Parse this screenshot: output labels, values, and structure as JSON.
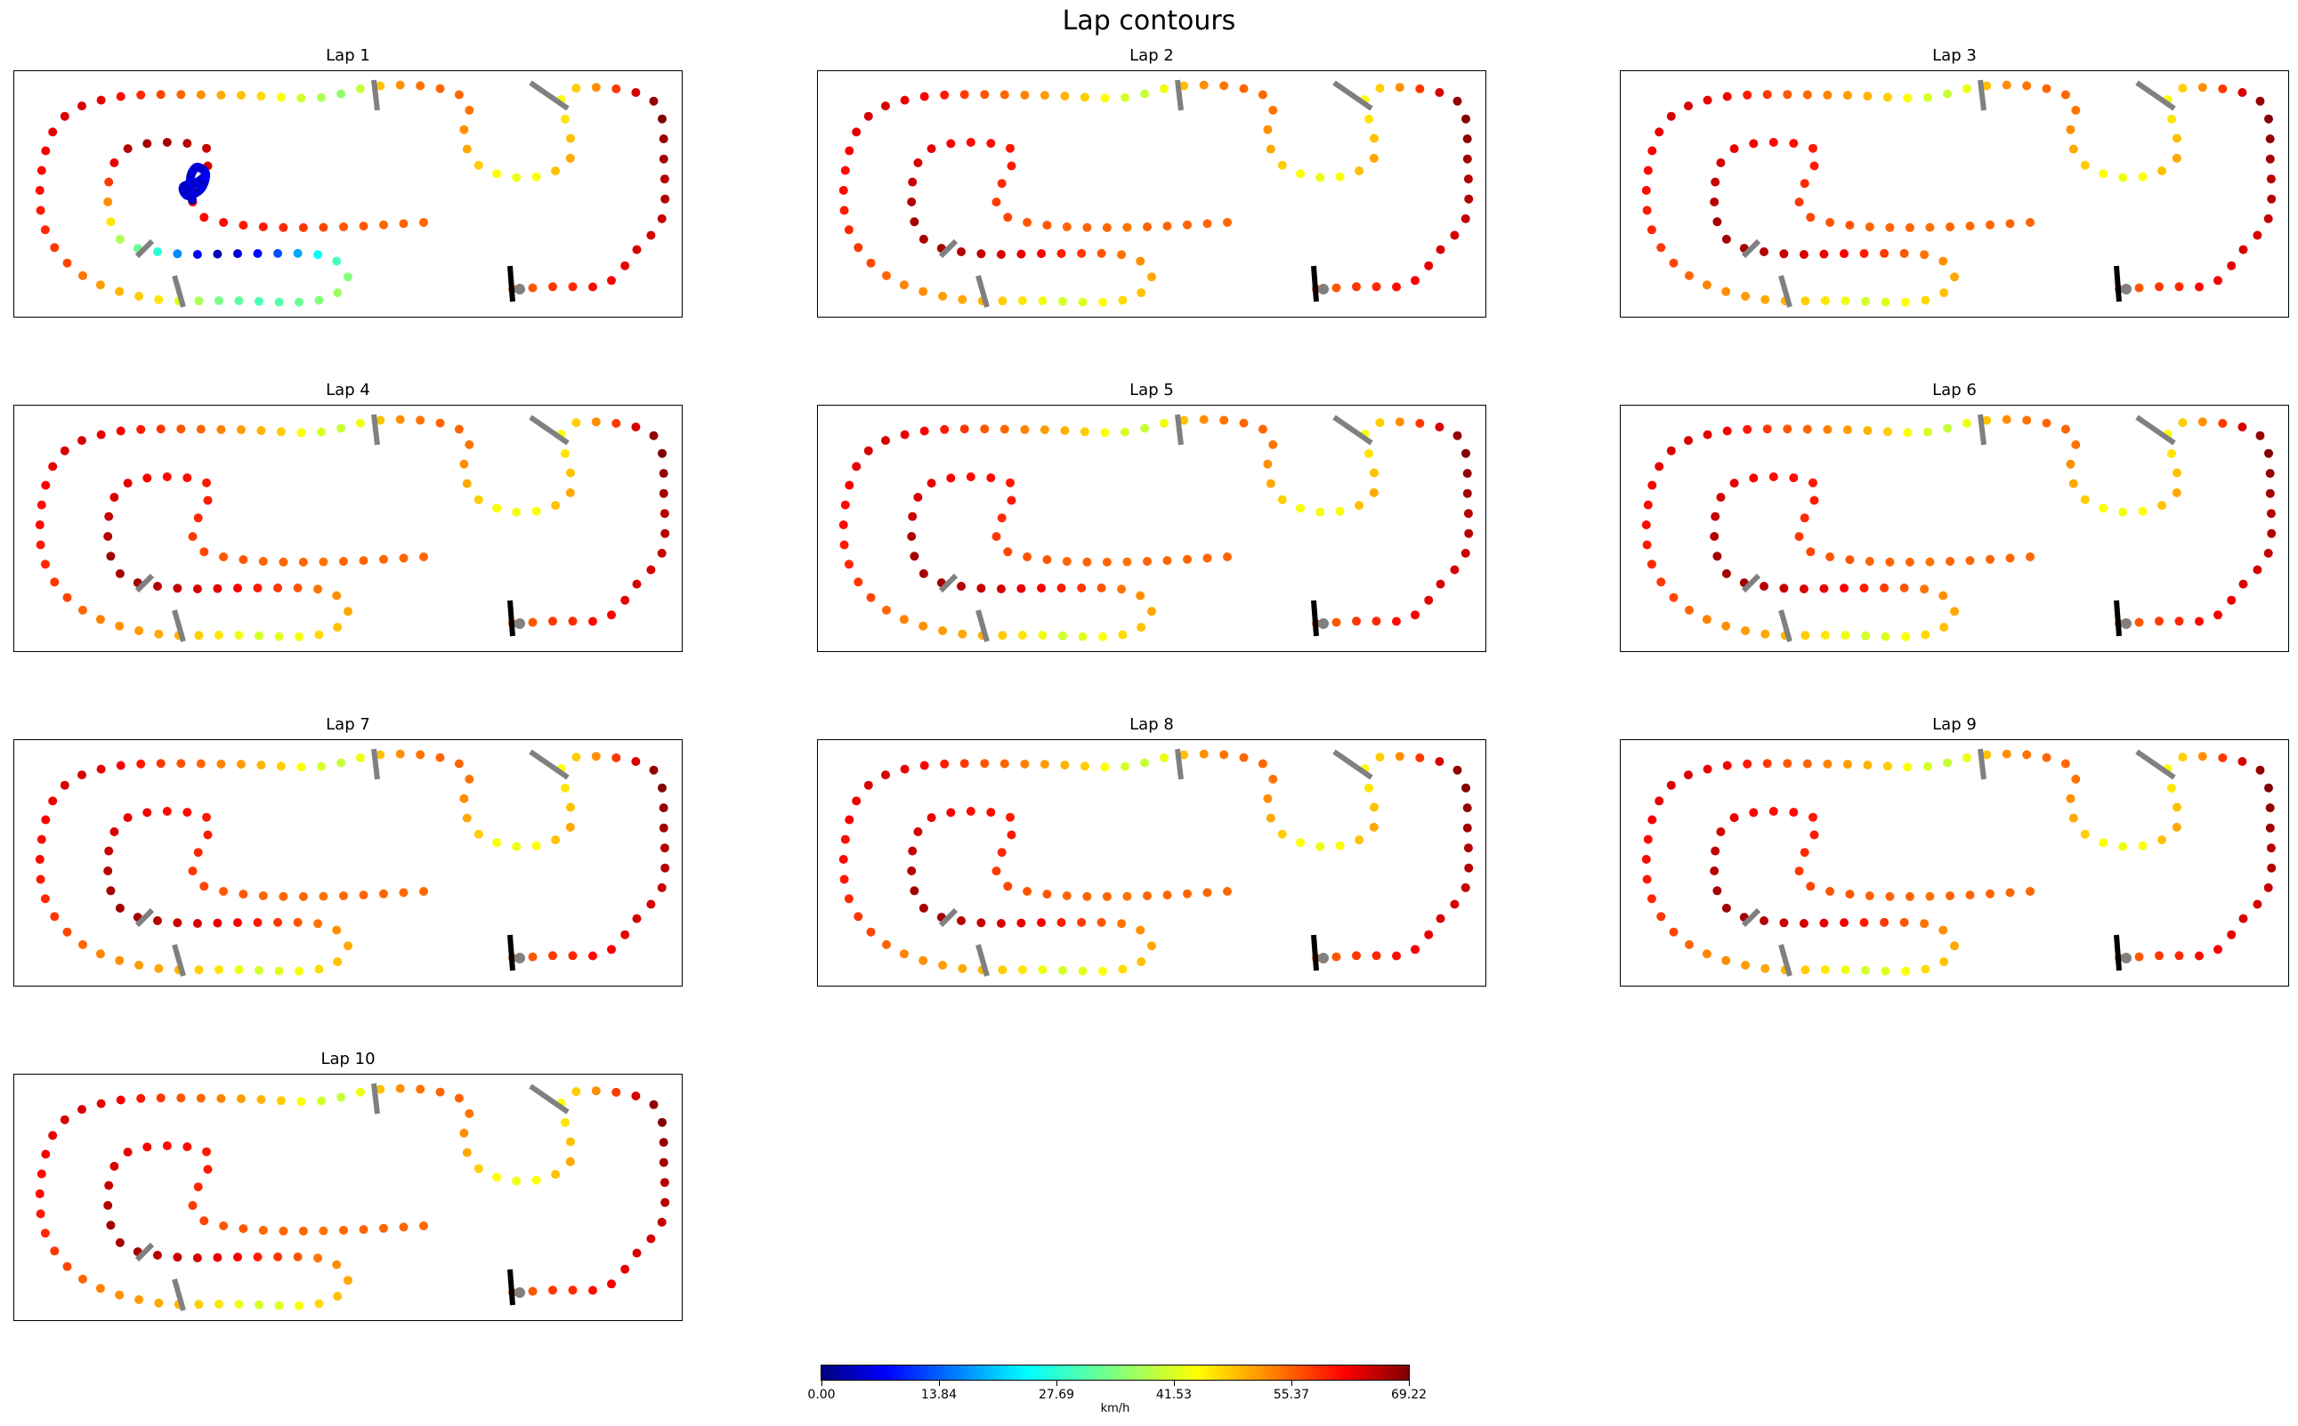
{
  "figure": {
    "title": "Lap contours"
  },
  "chart_data": {
    "type": "scatter",
    "title": "Lap contours",
    "laps": [
      {
        "name": "Lap 1",
        "speeds": [
          55,
          56,
          58,
          59,
          61,
          62,
          63,
          64,
          64,
          65,
          66,
          66,
          67,
          68,
          69,
          68,
          64,
          58,
          52,
          47,
          44,
          45,
          48,
          50,
          48,
          44,
          43,
          44,
          47,
          50,
          52,
          54,
          55,
          55,
          54,
          52,
          48,
          40,
          36,
          38,
          41,
          44,
          46,
          48,
          50,
          52,
          55,
          57,
          59,
          61,
          63,
          64,
          64,
          63,
          62,
          61,
          61,
          60,
          59,
          58,
          57,
          54,
          51,
          49,
          47,
          45,
          42,
          38,
          34,
          32,
          30,
          31,
          33,
          35,
          37,
          35,
          30,
          25,
          20,
          14,
          9,
          5,
          3,
          8,
          18,
          28,
          33,
          38,
          45,
          52,
          58,
          63,
          66,
          67,
          67,
          66,
          65,
          64,
          63,
          62,
          61,
          61,
          60,
          60,
          59,
          58,
          57,
          56,
          56,
          55,
          55,
          55
        ]
      },
      {
        "name": "Lap 2",
        "speeds": [
          55,
          56,
          58,
          59,
          61,
          62,
          63,
          64,
          64,
          65,
          66,
          66,
          67,
          68,
          69,
          68,
          64,
          58,
          52,
          47,
          44,
          45,
          48,
          50,
          48,
          44,
          43,
          44,
          47,
          50,
          52,
          54,
          55,
          55,
          54,
          52,
          48,
          43,
          40,
          41,
          44,
          47,
          49,
          51,
          53,
          55,
          56,
          58,
          60,
          62,
          63,
          64,
          64,
          63,
          62,
          61,
          61,
          60,
          59,
          58,
          57,
          55,
          53,
          52,
          51,
          50,
          49,
          47,
          45,
          43,
          41,
          42,
          44,
          46,
          48,
          50,
          52,
          54,
          56,
          58,
          60,
          62,
          63,
          64,
          65,
          66,
          67,
          67,
          67,
          66,
          65,
          64,
          63,
          62,
          61,
          61,
          60,
          60,
          59,
          58,
          57,
          56,
          56,
          55,
          55,
          55,
          54,
          55,
          55,
          55,
          55,
          55
        ]
      },
      {
        "name": "Lap 3",
        "speeds": [
          55,
          56,
          58,
          59,
          61,
          62,
          63,
          64,
          64,
          65,
          66,
          66,
          67,
          68,
          69,
          68,
          64,
          58,
          52,
          47,
          44,
          45,
          48,
          50,
          48,
          44,
          43,
          44,
          47,
          50,
          52,
          54,
          55,
          55,
          54,
          52,
          48,
          43,
          40,
          41,
          44,
          47,
          49,
          51,
          53,
          55,
          56,
          58,
          60,
          62,
          63,
          64,
          64,
          63,
          62,
          61,
          61,
          60,
          59,
          58,
          57,
          55,
          53,
          52,
          51,
          50,
          49,
          47,
          45,
          43,
          41,
          42,
          44,
          46,
          48,
          50,
          52,
          54,
          56,
          58,
          60,
          62,
          63,
          64,
          65,
          66,
          67,
          67,
          67,
          66,
          65,
          64,
          63,
          62,
          61,
          61,
          60,
          60,
          59,
          58,
          57,
          56,
          56,
          55,
          55,
          55,
          54,
          55,
          55,
          55,
          55,
          55
        ]
      },
      {
        "name": "Lap 4",
        "speeds": [
          55,
          56,
          58,
          59,
          61,
          62,
          63,
          64,
          64,
          65,
          66,
          66,
          67,
          68,
          69,
          68,
          64,
          58,
          52,
          47,
          44,
          45,
          48,
          50,
          48,
          44,
          43,
          44,
          47,
          50,
          52,
          54,
          55,
          55,
          54,
          52,
          48,
          43,
          40,
          41,
          44,
          47,
          49,
          51,
          53,
          55,
          56,
          58,
          60,
          62,
          63,
          64,
          64,
          63,
          62,
          61,
          61,
          60,
          59,
          58,
          57,
          55,
          53,
          52,
          51,
          50,
          49,
          47,
          45,
          43,
          41,
          42,
          44,
          46,
          48,
          50,
          52,
          54,
          56,
          58,
          60,
          62,
          63,
          64,
          65,
          66,
          67,
          67,
          67,
          66,
          65,
          64,
          63,
          62,
          61,
          61,
          60,
          60,
          59,
          58,
          57,
          56,
          56,
          55,
          55,
          55,
          54,
          55,
          55,
          55,
          55,
          55
        ]
      },
      {
        "name": "Lap 5",
        "speeds": [
          55,
          56,
          58,
          59,
          61,
          62,
          63,
          64,
          64,
          65,
          66,
          66,
          67,
          68,
          69,
          68,
          64,
          58,
          52,
          47,
          44,
          45,
          48,
          50,
          48,
          44,
          43,
          44,
          47,
          50,
          52,
          54,
          55,
          55,
          54,
          52,
          48,
          43,
          40,
          41,
          44,
          47,
          49,
          51,
          53,
          55,
          56,
          58,
          60,
          62,
          63,
          64,
          64,
          63,
          62,
          61,
          61,
          60,
          59,
          58,
          57,
          55,
          53,
          52,
          51,
          50,
          49,
          47,
          45,
          43,
          41,
          42,
          44,
          46,
          48,
          50,
          52,
          54,
          56,
          58,
          60,
          62,
          63,
          64,
          65,
          66,
          67,
          67,
          67,
          66,
          65,
          64,
          63,
          62,
          61,
          61,
          60,
          60,
          59,
          58,
          57,
          56,
          56,
          55,
          55,
          55,
          54,
          55,
          55,
          55,
          55,
          55
        ]
      },
      {
        "name": "Lap 6",
        "speeds": [
          55,
          56,
          58,
          59,
          61,
          62,
          63,
          64,
          64,
          65,
          66,
          66,
          67,
          68,
          69,
          68,
          64,
          58,
          52,
          47,
          44,
          45,
          48,
          50,
          48,
          44,
          43,
          44,
          47,
          50,
          52,
          54,
          55,
          55,
          54,
          52,
          48,
          43,
          40,
          41,
          44,
          47,
          49,
          51,
          53,
          55,
          56,
          58,
          60,
          62,
          63,
          64,
          64,
          63,
          62,
          61,
          61,
          60,
          59,
          58,
          57,
          55,
          53,
          52,
          51,
          50,
          49,
          47,
          45,
          43,
          41,
          42,
          44,
          46,
          48,
          50,
          52,
          54,
          56,
          58,
          60,
          62,
          63,
          64,
          65,
          66,
          67,
          67,
          67,
          66,
          65,
          64,
          63,
          62,
          61,
          61,
          60,
          60,
          59,
          58,
          57,
          56,
          56,
          55,
          55,
          55,
          54,
          55,
          55,
          55,
          55,
          55
        ]
      },
      {
        "name": "Lap 7",
        "speeds": [
          55,
          56,
          58,
          59,
          61,
          62,
          63,
          64,
          64,
          65,
          66,
          66,
          67,
          68,
          69,
          68,
          64,
          58,
          52,
          47,
          44,
          45,
          48,
          50,
          48,
          44,
          43,
          44,
          47,
          50,
          52,
          54,
          55,
          55,
          54,
          52,
          48,
          43,
          40,
          41,
          44,
          47,
          49,
          51,
          53,
          55,
          56,
          58,
          60,
          62,
          63,
          64,
          64,
          63,
          62,
          61,
          61,
          60,
          59,
          58,
          57,
          55,
          53,
          52,
          51,
          50,
          49,
          47,
          45,
          43,
          41,
          42,
          44,
          46,
          48,
          50,
          52,
          54,
          56,
          58,
          60,
          62,
          63,
          64,
          65,
          66,
          67,
          67,
          67,
          66,
          65,
          64,
          63,
          62,
          61,
          61,
          60,
          60,
          59,
          58,
          57,
          56,
          56,
          55,
          55,
          55,
          54,
          55,
          55,
          55,
          55,
          55
        ]
      },
      {
        "name": "Lap 8",
        "speeds": [
          55,
          56,
          58,
          59,
          61,
          62,
          63,
          64,
          64,
          65,
          66,
          66,
          67,
          68,
          69,
          68,
          64,
          58,
          52,
          47,
          44,
          45,
          48,
          50,
          48,
          44,
          43,
          44,
          47,
          50,
          52,
          54,
          55,
          55,
          54,
          52,
          48,
          43,
          40,
          41,
          44,
          47,
          49,
          51,
          53,
          55,
          56,
          58,
          60,
          62,
          63,
          64,
          64,
          63,
          62,
          61,
          61,
          60,
          59,
          58,
          57,
          55,
          53,
          52,
          51,
          50,
          49,
          47,
          45,
          43,
          41,
          42,
          44,
          46,
          48,
          50,
          52,
          54,
          56,
          58,
          60,
          62,
          63,
          64,
          65,
          66,
          67,
          67,
          67,
          66,
          65,
          64,
          63,
          62,
          61,
          61,
          60,
          60,
          59,
          58,
          57,
          56,
          56,
          55,
          55,
          55,
          54,
          55,
          55,
          55,
          55,
          55
        ]
      },
      {
        "name": "Lap 9",
        "speeds": [
          55,
          56,
          58,
          59,
          61,
          62,
          63,
          64,
          64,
          65,
          66,
          66,
          67,
          68,
          69,
          68,
          64,
          58,
          52,
          47,
          44,
          45,
          48,
          50,
          48,
          44,
          43,
          44,
          47,
          50,
          52,
          54,
          55,
          55,
          54,
          52,
          48,
          43,
          40,
          41,
          44,
          47,
          49,
          51,
          53,
          55,
          56,
          58,
          60,
          62,
          63,
          64,
          64,
          63,
          62,
          61,
          61,
          60,
          59,
          58,
          57,
          55,
          53,
          52,
          51,
          50,
          49,
          47,
          45,
          43,
          41,
          42,
          44,
          46,
          48,
          50,
          52,
          54,
          56,
          58,
          60,
          62,
          63,
          64,
          65,
          66,
          67,
          67,
          67,
          66,
          65,
          64,
          63,
          62,
          61,
          61,
          60,
          60,
          59,
          58,
          57,
          56,
          56,
          55,
          55,
          55,
          54,
          55,
          55,
          55,
          55,
          55
        ]
      },
      {
        "name": "Lap 10",
        "speeds": [
          55,
          56,
          58,
          59,
          61,
          62,
          63,
          64,
          64,
          65,
          66,
          66,
          67,
          68,
          69,
          68,
          64,
          58,
          52,
          47,
          44,
          45,
          48,
          50,
          48,
          44,
          43,
          44,
          47,
          50,
          52,
          54,
          55,
          55,
          54,
          52,
          48,
          43,
          40,
          41,
          44,
          47,
          49,
          51,
          53,
          55,
          56,
          58,
          60,
          62,
          63,
          64,
          64,
          63,
          62,
          61,
          61,
          60,
          59,
          58,
          57,
          55,
          53,
          52,
          51,
          50,
          49,
          47,
          45,
          43,
          41,
          42,
          44,
          46,
          48,
          50,
          52,
          54,
          56,
          58,
          60,
          62,
          63,
          64,
          65,
          66,
          67,
          67,
          67,
          66,
          65,
          64,
          63,
          62,
          61,
          61,
          60,
          60,
          59,
          58,
          57,
          56,
          56,
          55,
          55,
          55,
          54,
          55,
          55,
          55,
          55,
          55
        ]
      }
    ],
    "colorbar": {
      "label": "km/h",
      "min": 0,
      "max": 69.22,
      "ticks": [
        "0.00",
        "13.84",
        "27.69",
        "41.53",
        "55.37",
        "69.22"
      ],
      "colormap": "jet"
    },
    "marker_colors": {
      "start_line": "#000000",
      "sector_lines": "#808080"
    }
  }
}
